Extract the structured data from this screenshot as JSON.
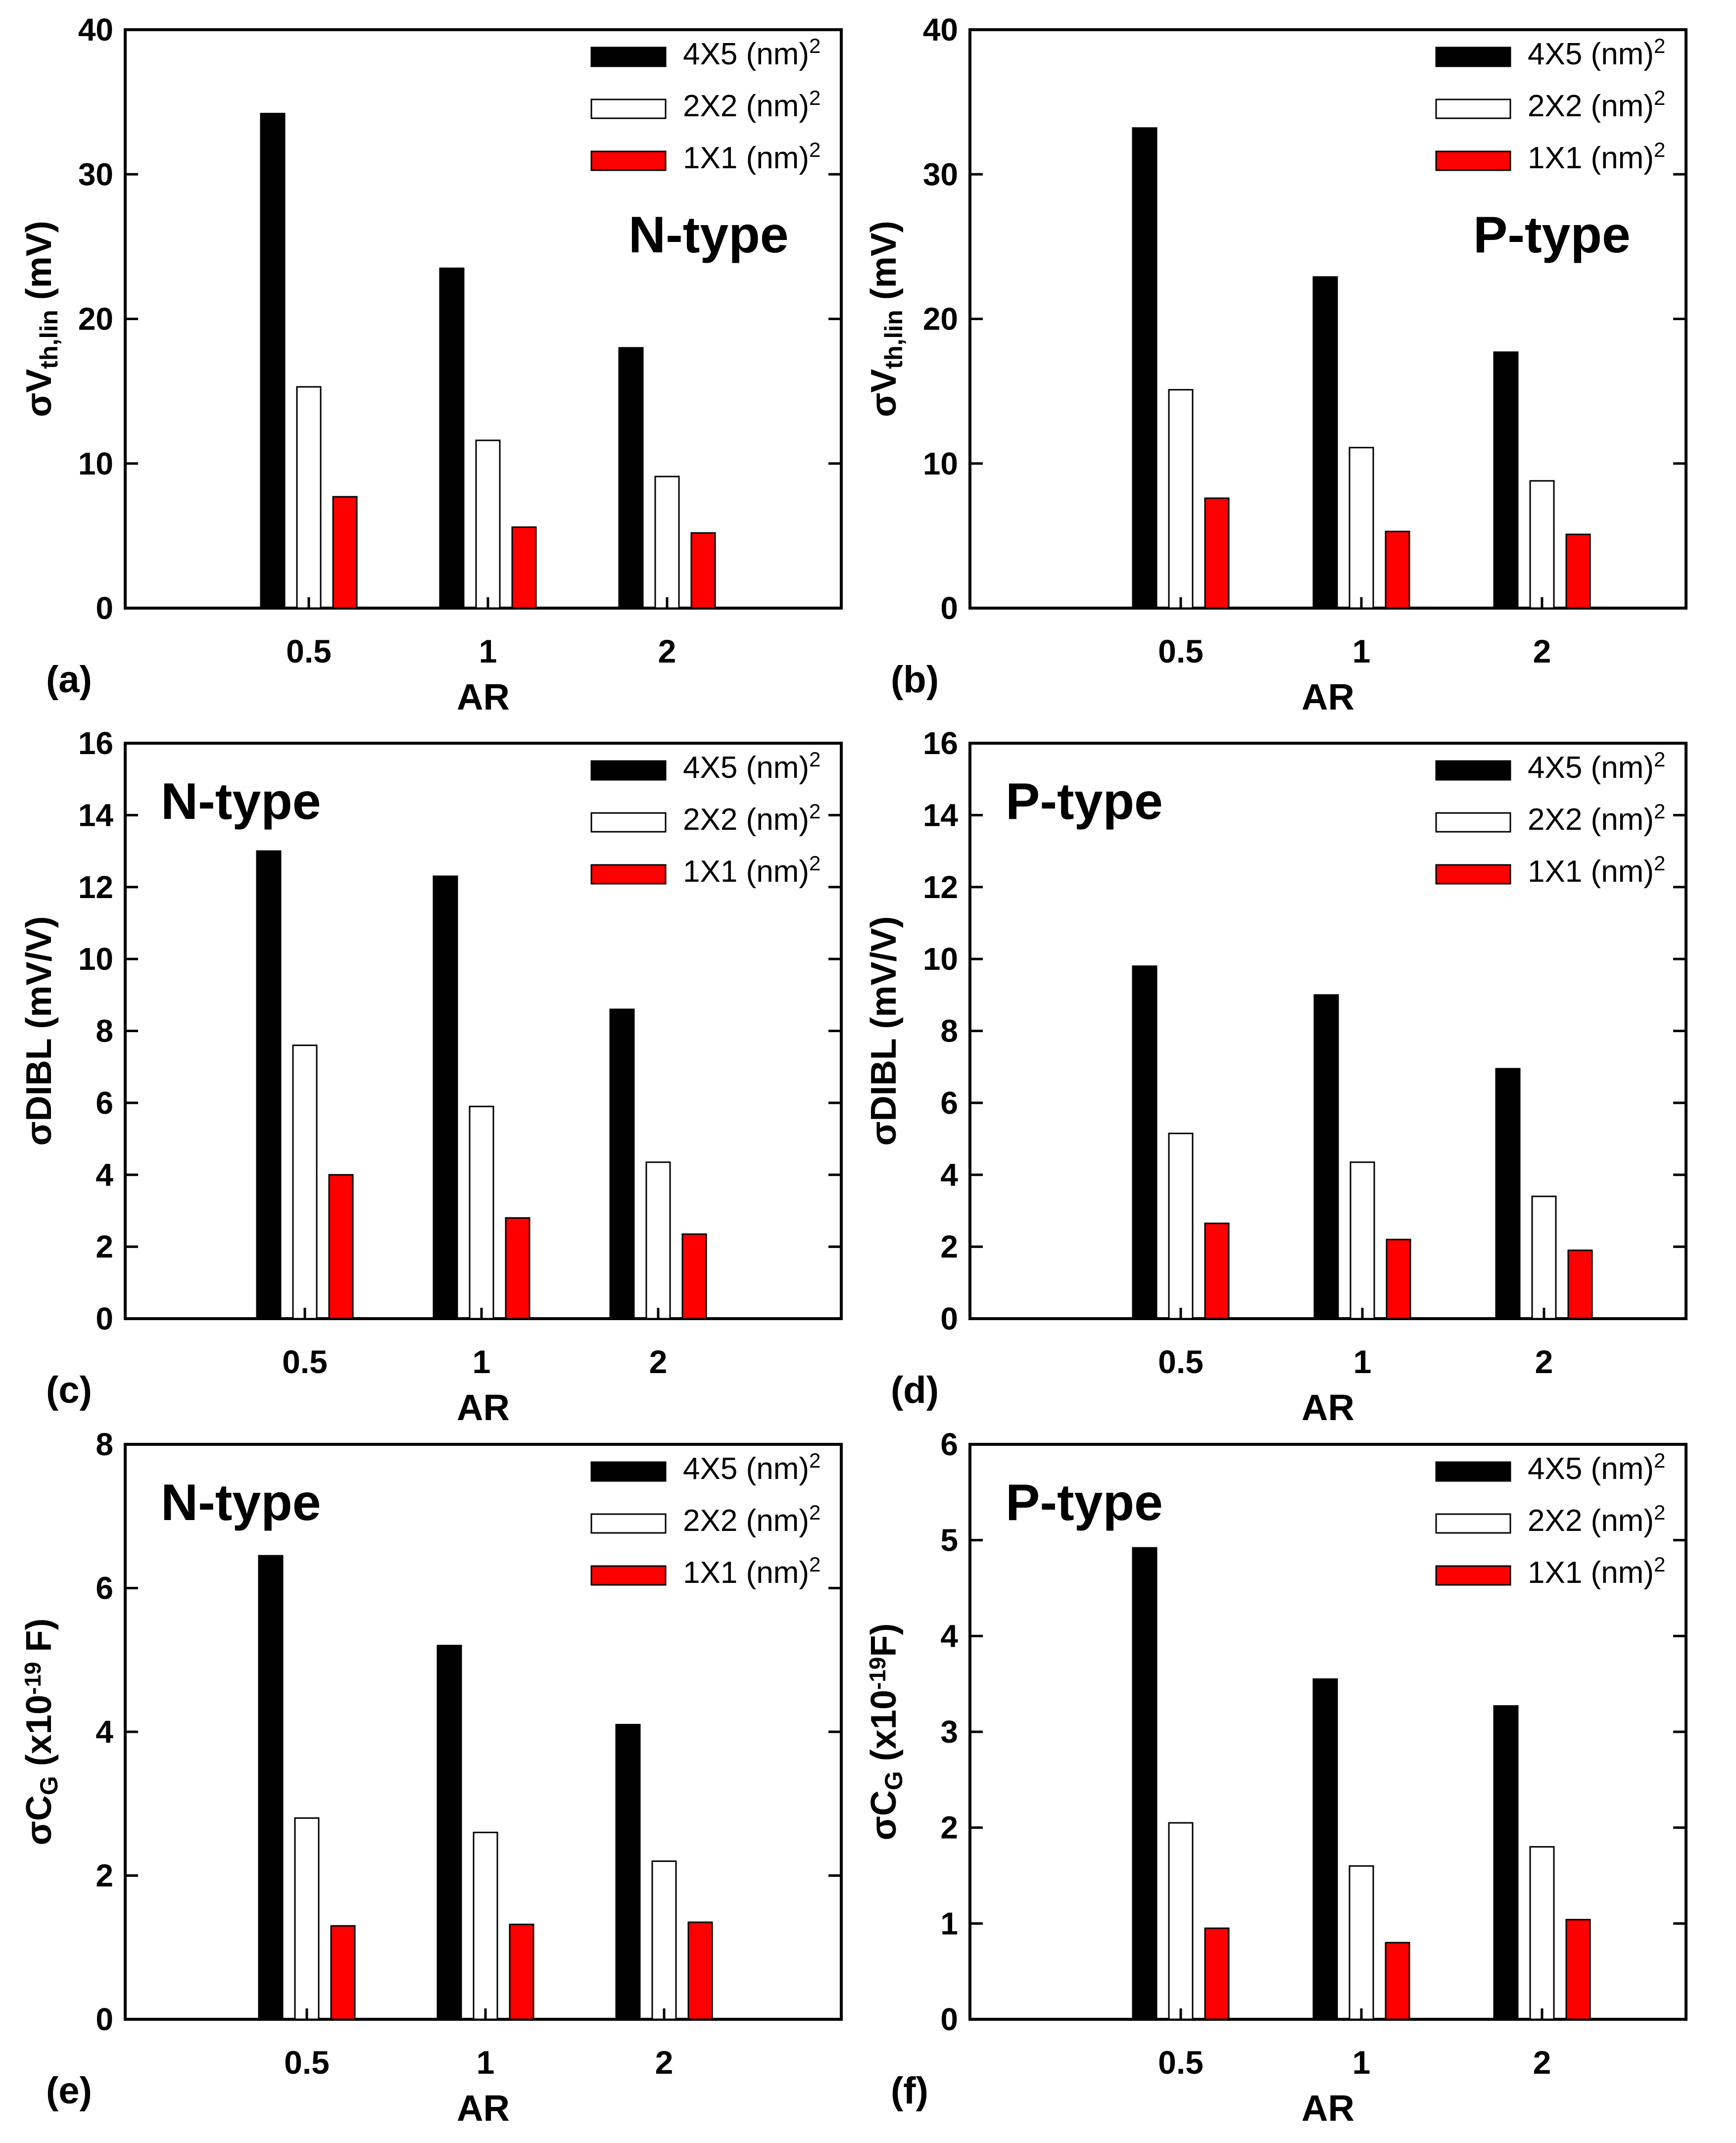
{
  "colors": {
    "series_fill": [
      "#000000",
      "#ffffff",
      "#ff0000"
    ],
    "stroke": "#000000"
  },
  "legend_entries": [
    {
      "label": "4X5 (nm)",
      "sup": "2"
    },
    {
      "label": "2X2 (nm)",
      "sup": "2"
    },
    {
      "label": "1X1 (nm)",
      "sup": "2"
    }
  ],
  "chart_data": [
    {
      "type": "bar",
      "panel_label": "(a)",
      "type_label": "N-type",
      "type_label_pos": "upper-right",
      "categories": [
        "0.5",
        "1",
        "2"
      ],
      "xlabel": "AR",
      "ylabel_parts": [
        {
          "t": "σV",
          "s": "normal"
        },
        {
          "t": "th,lin",
          "s": "sub"
        },
        {
          "t": " (mV)",
          "s": "normal"
        }
      ],
      "ylim": [
        0,
        40
      ],
      "yticks": [
        0,
        10,
        20,
        30,
        40
      ],
      "ytick_labels": [
        "0",
        "10",
        "20",
        "30",
        "40"
      ],
      "legend_position": "top-right",
      "series": [
        {
          "name": "4X5 (nm)^2",
          "values": [
            34.2,
            23.5,
            18.0
          ]
        },
        {
          "name": "2X2 (nm)^2",
          "values": [
            15.3,
            11.6,
            9.1
          ]
        },
        {
          "name": "1X1 (nm)^2",
          "values": [
            7.7,
            5.6,
            5.2
          ]
        }
      ]
    },
    {
      "type": "bar",
      "panel_label": "(b)",
      "type_label": "P-type",
      "type_label_pos": "upper-right",
      "categories": [
        "0.5",
        "1",
        "2"
      ],
      "xlabel": "AR",
      "ylabel_parts": [
        {
          "t": "σV",
          "s": "normal"
        },
        {
          "t": "th,lin",
          "s": "sub"
        },
        {
          "t": " (mV)",
          "s": "normal"
        }
      ],
      "ylim": [
        0,
        40
      ],
      "yticks": [
        0,
        10,
        20,
        30,
        40
      ],
      "ytick_labels": [
        "0",
        "10",
        "20",
        "30",
        "40"
      ],
      "legend_position": "top-right",
      "series": [
        {
          "name": "4X5 (nm)^2",
          "values": [
            33.2,
            22.9,
            17.7
          ]
        },
        {
          "name": "2X2 (nm)^2",
          "values": [
            15.1,
            11.1,
            8.8
          ]
        },
        {
          "name": "1X1 (nm)^2",
          "values": [
            7.6,
            5.3,
            5.1
          ]
        }
      ]
    },
    {
      "type": "bar",
      "panel_label": "(c)",
      "type_label": "N-type",
      "type_label_pos": "upper-left",
      "categories": [
        "0.5",
        "1",
        "2"
      ],
      "xlabel": "AR",
      "ylabel_parts": [
        {
          "t": "σDIBL (mV/V)",
          "s": "normal"
        }
      ],
      "ylim": [
        0,
        16
      ],
      "yticks": [
        0,
        2,
        4,
        6,
        8,
        10,
        12,
        14,
        16
      ],
      "ytick_labels": [
        "0",
        "2",
        "4",
        "6",
        "8",
        "10",
        "12",
        "14",
        "16"
      ],
      "legend_position": "top-right",
      "series": [
        {
          "name": "4X5 (nm)^2",
          "values": [
            13.0,
            12.3,
            8.6
          ]
        },
        {
          "name": "2X2 (nm)^2",
          "values": [
            7.6,
            5.9,
            4.35
          ]
        },
        {
          "name": "1X1 (nm)^2",
          "values": [
            4.0,
            2.8,
            2.35
          ]
        }
      ]
    },
    {
      "type": "bar",
      "panel_label": "(d)",
      "type_label": "P-type",
      "type_label_pos": "upper-left",
      "categories": [
        "0.5",
        "1",
        "2"
      ],
      "xlabel": "AR",
      "ylabel_parts": [
        {
          "t": "σDIBL (mV/V)",
          "s": "normal"
        }
      ],
      "ylim": [
        0,
        16
      ],
      "yticks": [
        0,
        2,
        4,
        6,
        8,
        10,
        12,
        14,
        16
      ],
      "ytick_labels": [
        "0",
        "2",
        "4",
        "6",
        "8",
        "10",
        "12",
        "14",
        "16"
      ],
      "legend_position": "top-right",
      "series": [
        {
          "name": "4X5 (nm)^2",
          "values": [
            9.8,
            9.0,
            6.95
          ]
        },
        {
          "name": "2X2 (nm)^2",
          "values": [
            5.15,
            4.35,
            3.4
          ]
        },
        {
          "name": "1X1 (nm)^2",
          "values": [
            2.65,
            2.2,
            1.9
          ]
        }
      ]
    },
    {
      "type": "bar",
      "panel_label": "(e)",
      "type_label": "N-type",
      "type_label_pos": "upper-left",
      "categories": [
        "0.5",
        "1",
        "2"
      ],
      "xlabel": "AR",
      "ylabel_parts": [
        {
          "t": "σC",
          "s": "normal"
        },
        {
          "t": "G",
          "s": "sub"
        },
        {
          "t": " (x10",
          "s": "normal"
        },
        {
          "t": "-19",
          "s": "sup"
        },
        {
          "t": " F)",
          "s": "normal"
        }
      ],
      "ylim": [
        0,
        8
      ],
      "yticks": [
        0,
        2,
        4,
        6,
        8
      ],
      "ytick_labels": [
        "0",
        "2",
        "4",
        "6",
        "8"
      ],
      "legend_position": "top-right",
      "series": [
        {
          "name": "4X5 (nm)^2",
          "values": [
            6.45,
            5.2,
            4.1
          ]
        },
        {
          "name": "2X2 (nm)^2",
          "values": [
            2.8,
            2.6,
            2.2
          ]
        },
        {
          "name": "1X1 (nm)^2",
          "values": [
            1.3,
            1.32,
            1.35
          ]
        }
      ]
    },
    {
      "type": "bar",
      "panel_label": "(f)",
      "type_label": "P-type",
      "type_label_pos": "upper-left",
      "categories": [
        "0.5",
        "1",
        "2"
      ],
      "xlabel": "AR",
      "ylabel_parts": [
        {
          "t": "σC",
          "s": "normal"
        },
        {
          "t": "G",
          "s": "sub"
        },
        {
          "t": " (x10",
          "s": "normal"
        },
        {
          "t": "-19",
          "s": "sup"
        },
        {
          "t": "F)",
          "s": "normal"
        }
      ],
      "ylim": [
        0,
        6
      ],
      "yticks": [
        0,
        1,
        2,
        3,
        4,
        5,
        6
      ],
      "ytick_labels": [
        "0",
        "1",
        "2",
        "3",
        "4",
        "5",
        "6"
      ],
      "legend_position": "top-right",
      "series": [
        {
          "name": "4X5 (nm)^2",
          "values": [
            4.92,
            3.55,
            3.27
          ]
        },
        {
          "name": "2X2 (nm)^2",
          "values": [
            2.05,
            1.6,
            1.8
          ]
        },
        {
          "name": "1X1 (nm)^2",
          "values": [
            0.95,
            0.8,
            1.04
          ]
        }
      ]
    }
  ]
}
